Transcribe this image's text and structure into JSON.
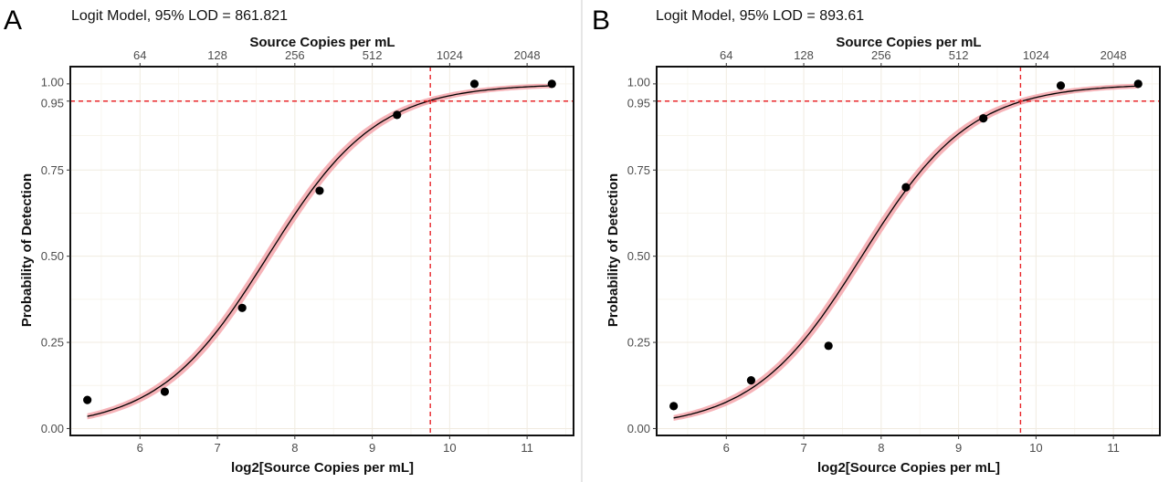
{
  "chart_data": [
    {
      "panel_label": "A",
      "type": "scatter",
      "title": "Logit Model, 95% LOD = 861.821",
      "xlabel": "log2[Source Copies per mL]",
      "ylabel": "Probability of Detection",
      "x2label": "Source Copies per mL",
      "xlim": [
        5.1,
        11.6
      ],
      "ylim": [
        -0.02,
        1.05
      ],
      "x_ticks": [
        6,
        7,
        8,
        9,
        10,
        11
      ],
      "y_ticks": [
        0.0,
        0.25,
        0.5,
        0.75,
        0.95,
        1.0
      ],
      "y_tick_labels": [
        "0.00",
        "0.25",
        "0.50",
        "0.75",
        "0.95",
        "1.00"
      ],
      "x2_ticks": [
        {
          "label": "64",
          "value": 6
        },
        {
          "label": "128",
          "value": 7
        },
        {
          "label": "256",
          "value": 8
        },
        {
          "label": "512",
          "value": 9
        },
        {
          "label": "1024",
          "value": 10
        },
        {
          "label": "2048",
          "value": 11
        }
      ],
      "points": [
        {
          "x": 5.32,
          "y": 0.083
        },
        {
          "x": 6.32,
          "y": 0.107
        },
        {
          "x": 7.32,
          "y": 0.35
        },
        {
          "x": 8.32,
          "y": 0.69
        },
        {
          "x": 9.32,
          "y": 0.91
        },
        {
          "x": 10.32,
          "y": 1.0
        },
        {
          "x": 11.32,
          "y": 1.0
        }
      ],
      "fit_curve": {
        "model": "logit",
        "x50": 7.65,
        "slope": 1.42,
        "x_range": [
          5.32,
          11.32
        ],
        "ci_halfwidth": 0.022
      },
      "lod_x": 9.75,
      "lod_y": 0.95,
      "colors": {
        "curve": "#000000",
        "band": "#f4a6ab",
        "reference_line": "#e8262a",
        "points": "#000000"
      },
      "grid": true
    },
    {
      "panel_label": "B",
      "type": "scatter",
      "title": "Logit Model, 95% LOD = 893.61",
      "xlabel": "log2[Source Copies per mL]",
      "ylabel": "Probability of Detection",
      "x2label": "Source Copies per mL",
      "xlim": [
        5.1,
        11.6
      ],
      "ylim": [
        -0.02,
        1.05
      ],
      "x_ticks": [
        6,
        7,
        8,
        9,
        10,
        11
      ],
      "y_ticks": [
        0.0,
        0.25,
        0.5,
        0.75,
        0.95,
        1.0
      ],
      "y_tick_labels": [
        "0.00",
        "0.25",
        "0.50",
        "0.75",
        "0.95",
        "1.00"
      ],
      "x2_ticks": [
        {
          "label": "64",
          "value": 6
        },
        {
          "label": "128",
          "value": 7
        },
        {
          "label": "256",
          "value": 8
        },
        {
          "label": "512",
          "value": 9
        },
        {
          "label": "1024",
          "value": 10
        },
        {
          "label": "2048",
          "value": 11
        }
      ],
      "points": [
        {
          "x": 5.32,
          "y": 0.065
        },
        {
          "x": 6.32,
          "y": 0.14
        },
        {
          "x": 7.32,
          "y": 0.24
        },
        {
          "x": 8.32,
          "y": 0.7
        },
        {
          "x": 9.32,
          "y": 0.9
        },
        {
          "x": 10.32,
          "y": 0.995
        },
        {
          "x": 11.32,
          "y": 1.0
        }
      ],
      "fit_curve": {
        "model": "logit",
        "x50": 7.75,
        "slope": 1.42,
        "x_range": [
          5.32,
          11.32
        ],
        "ci_halfwidth": 0.022
      },
      "lod_x": 9.8,
      "lod_y": 0.95,
      "colors": {
        "curve": "#000000",
        "band": "#f4a6ab",
        "reference_line": "#e8262a",
        "points": "#000000"
      },
      "grid": true
    }
  ]
}
